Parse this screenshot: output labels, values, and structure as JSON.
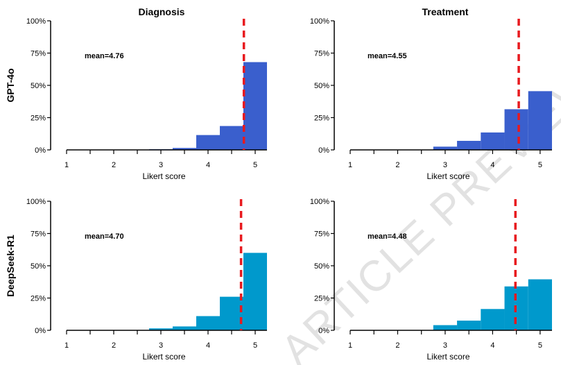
{
  "column_titles": [
    "Diagnosis",
    "Treatment"
  ],
  "row_titles": [
    "GPT-4o",
    "DeepSeek-R1"
  ],
  "watermark": "ARTICLE PREVIEW",
  "colors": {
    "gpt4o_bar": "#3a5fcd",
    "deepseek_bar": "#0099cc",
    "mean_line": "#e8191e"
  },
  "chart_data": [
    {
      "type": "bar",
      "model": "GPT-4o",
      "task": "Diagnosis",
      "categories": [
        1,
        1.5,
        2,
        2.5,
        3,
        3.5,
        4,
        4.5,
        5
      ],
      "values": [
        0,
        0,
        0,
        0,
        0.5,
        1.5,
        11.5,
        18.5,
        68
      ],
      "mean_label": "mean=4.76",
      "mean": 4.76,
      "xlabel": "Likert score",
      "xticks": [
        "1",
        "2",
        "3",
        "4",
        "5"
      ],
      "yticks": [
        "0%",
        "25%",
        "50%",
        "75%",
        "100%"
      ],
      "ylim": [
        0,
        100
      ],
      "xlim": [
        1,
        5.25
      ]
    },
    {
      "type": "bar",
      "model": "GPT-4o",
      "task": "Treatment",
      "categories": [
        1,
        1.5,
        2,
        2.5,
        3,
        3.5,
        4,
        4.5,
        5
      ],
      "values": [
        0,
        0,
        0,
        0,
        2.5,
        7,
        13.5,
        31.5,
        45.5
      ],
      "mean_label": "mean=4.55",
      "mean": 4.55,
      "xlabel": "Likert score",
      "xticks": [
        "1",
        "2",
        "3",
        "4",
        "5"
      ],
      "yticks": [
        "0%",
        "25%",
        "50%",
        "75%",
        "100%"
      ],
      "ylim": [
        0,
        100
      ],
      "xlim": [
        1,
        5.25
      ]
    },
    {
      "type": "bar",
      "model": "DeepSeek-R1",
      "task": "Diagnosis",
      "categories": [
        1,
        1.5,
        2,
        2.5,
        3,
        3.5,
        4,
        4.5,
        5
      ],
      "values": [
        0,
        0,
        0,
        0,
        1.5,
        3,
        11,
        26,
        60
      ],
      "mean_label": "mean=4.70",
      "mean": 4.7,
      "xlabel": "Likert score",
      "xticks": [
        "1",
        "2",
        "3",
        "4",
        "5"
      ],
      "yticks": [
        "0%",
        "25%",
        "50%",
        "75%",
        "100%"
      ],
      "ylim": [
        0,
        100
      ],
      "xlim": [
        1,
        5.25
      ]
    },
    {
      "type": "bar",
      "model": "DeepSeek-R1",
      "task": "Treatment",
      "categories": [
        1,
        1.5,
        2,
        2.5,
        3,
        3.5,
        4,
        4.5,
        5
      ],
      "values": [
        0,
        0,
        0,
        0,
        4,
        7.5,
        16.5,
        34,
        39.5
      ],
      "mean_label": "mean=4.48",
      "mean": 4.48,
      "xlabel": "Likert score",
      "xticks": [
        "1",
        "2",
        "3",
        "4",
        "5"
      ],
      "yticks": [
        "0%",
        "25%",
        "50%",
        "75%",
        "100%"
      ],
      "ylim": [
        0,
        100
      ],
      "xlim": [
        1,
        5.25
      ]
    }
  ]
}
